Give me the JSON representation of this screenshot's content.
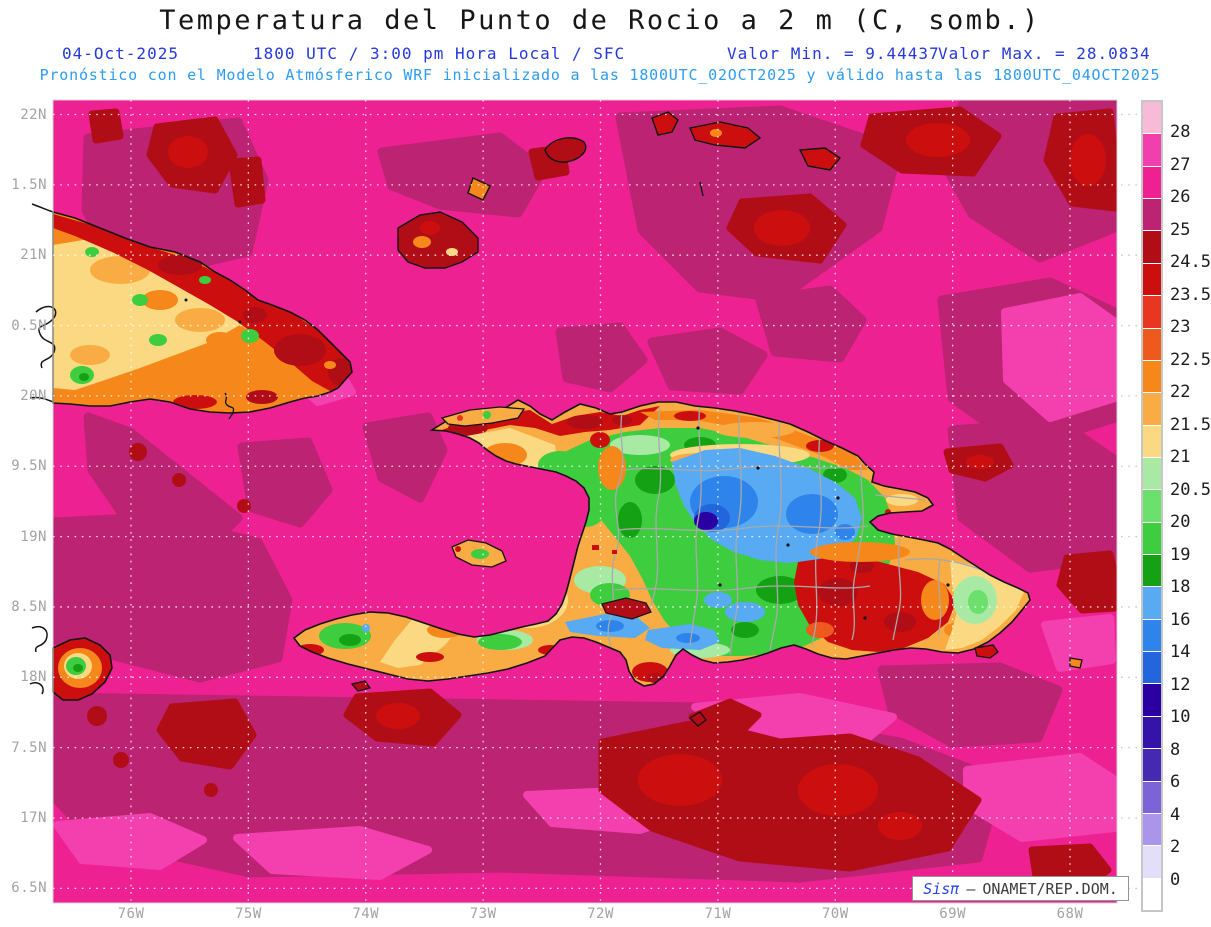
{
  "header": {
    "title": "Temperatura del Punto de Rocio a 2 m (C, somb.)",
    "date": "04-Oct-2025",
    "time_info": "1800 UTC / 3:00 pm Hora Local / SFC",
    "valor_min": "Valor Min. = 9.44437",
    "valor_max": "Valor Max. = 28.0834",
    "forecast_line": "Pronóstico con el Modelo Atmósferico WRF inicializado a las 1800UTC_02OCT2025 y válido hasta las  1800UTC_04OCT2025"
  },
  "axes": {
    "y_ticks": [
      "22N",
      "1.5N",
      "21N",
      "0.5N",
      "20N",
      "9.5N",
      "19N",
      "8.5N",
      "18N",
      "7.5N",
      "17N",
      "6.5N"
    ],
    "x_ticks": [
      "76W",
      "75W",
      "74W",
      "73W",
      "72W",
      "71W",
      "70W",
      "69W",
      "68W"
    ]
  },
  "colorbar": {
    "labels": [
      "28",
      "27",
      "26",
      "25",
      "24.5",
      "23.5",
      "23",
      "22.5",
      "22",
      "21.5",
      "21",
      "20.5",
      "20",
      "19",
      "18",
      "16",
      "14",
      "12",
      "10",
      "8",
      "6",
      "4",
      "2",
      "0"
    ],
    "band_colors": [
      "#F7BAD7",
      "#F23FAE",
      "#EE2192",
      "#BC2372",
      "#B00D17",
      "#CC0F0E",
      "#E93620",
      "#EE5A1E",
      "#F6871A",
      "#F9AC43",
      "#FBD982",
      "#A8EAA4",
      "#6CE06C",
      "#3DCD3F",
      "#14A214",
      "#58AAF2",
      "#2E84EB",
      "#2365DC",
      "#2B00A3",
      "#3513A8",
      "#4629B2",
      "#7C63D8",
      "#AB94EC",
      "#E3DFF9",
      "#FFFFFF"
    ]
  },
  "watermark": {
    "brand": "Sisπ",
    "dash": "–",
    "org": "ONAMET/REP.DOM."
  },
  "colors": {
    "header_line2_blue": "#2538DC",
    "header_line3_blue": "#2D9BEF",
    "axis_label_gray": "#A3A3A3",
    "sea_base_magenta": "#EE2192",
    "sea_dark_magenta": "#BC2372",
    "sea_crimson": "#B00D17"
  }
}
